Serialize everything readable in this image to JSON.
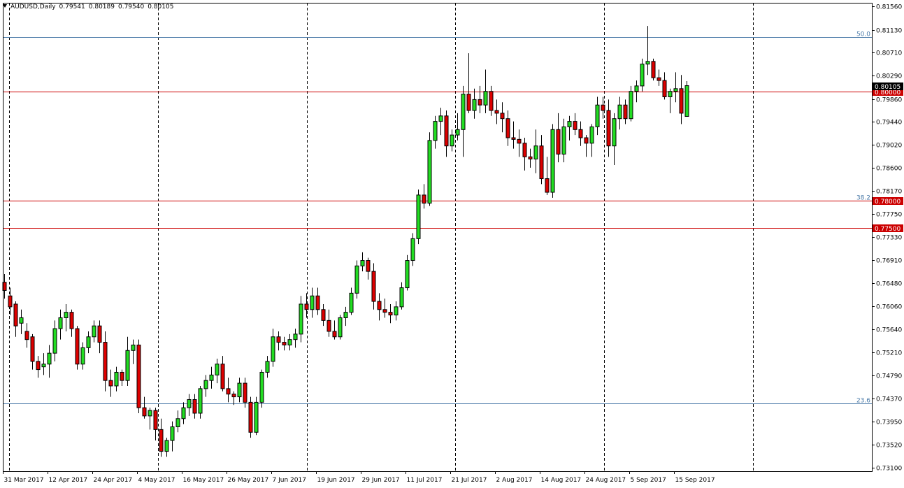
{
  "header": {
    "symbol": "AUDUSD,Daily",
    "open": "0.79541",
    "high": "0.80189",
    "low": "0.79540",
    "close": "0.80105"
  },
  "colors": {
    "bull": "#22dd22",
    "bear": "#dd0000",
    "hline": "#cc0000",
    "fib": "#4a7aa8",
    "grid": "#000000",
    "axis": "#000000"
  },
  "chart_data": {
    "type": "candlestick",
    "symbol": "AUDUSD",
    "timeframe": "Daily",
    "ylim": [
      0.731,
      0.8156
    ],
    "y_ticks": [
      "0.81560",
      "0.81130",
      "0.80710",
      "0.80290",
      "0.79860",
      "0.79440",
      "0.79020",
      "0.78600",
      "0.78170",
      "0.77750",
      "0.77330",
      "0.76910",
      "0.76480",
      "0.76060",
      "0.75640",
      "0.75210",
      "0.74790",
      "0.74370",
      "0.73950",
      "0.73520",
      "0.73100"
    ],
    "x_labels": [
      "31 Mar 2017",
      "12 Apr 2017",
      "24 Apr 2017",
      "4 May 2017",
      "16 May 2017",
      "26 May 2017",
      "7 Jun 2017",
      "19 Jun 2017",
      "29 Jun 2017",
      "11 Jul 2017",
      "21 Jul 2017",
      "2 Aug 2017",
      "14 Aug 2017",
      "24 Aug 2017",
      "5 Sep 2017",
      "15 Sep 2017"
    ],
    "vertical_separators": 6,
    "price_lines": [
      {
        "price": 0.8,
        "label": "0.80000"
      },
      {
        "price": 0.78,
        "label": "0.78000"
      },
      {
        "price": 0.775,
        "label": "0.77500"
      }
    ],
    "fib_levels": [
      {
        "label": "50.0",
        "price": 0.81
      },
      {
        "label": "38.2",
        "price": 0.78
      },
      {
        "label": "23.6",
        "price": 0.7428
      }
    ],
    "current_price": "0.80105",
    "candles_ohlc": [
      [
        0.765,
        0.7665,
        0.762,
        0.7635
      ],
      [
        0.7625,
        0.764,
        0.759,
        0.7605
      ],
      [
        0.761,
        0.7615,
        0.755,
        0.757
      ],
      [
        0.7575,
        0.76,
        0.7555,
        0.7585
      ],
      [
        0.756,
        0.7575,
        0.753,
        0.7545
      ],
      [
        0.755,
        0.7555,
        0.749,
        0.7505
      ],
      [
        0.7505,
        0.7515,
        0.7475,
        0.749
      ],
      [
        0.7495,
        0.752,
        0.748,
        0.75
      ],
      [
        0.75,
        0.7535,
        0.7475,
        0.752
      ],
      [
        0.752,
        0.758,
        0.7505,
        0.7565
      ],
      [
        0.7565,
        0.76,
        0.7545,
        0.7585
      ],
      [
        0.7585,
        0.761,
        0.756,
        0.7595
      ],
      [
        0.7595,
        0.76,
        0.755,
        0.7565
      ],
      [
        0.7565,
        0.757,
        0.749,
        0.75
      ],
      [
        0.75,
        0.754,
        0.749,
        0.753
      ],
      [
        0.753,
        0.756,
        0.752,
        0.755
      ],
      [
        0.755,
        0.758,
        0.754,
        0.757
      ],
      [
        0.757,
        0.758,
        0.752,
        0.754
      ],
      [
        0.754,
        0.756,
        0.745,
        0.747
      ],
      [
        0.747,
        0.749,
        0.744,
        0.746
      ],
      [
        0.746,
        0.7495,
        0.745,
        0.7485
      ],
      [
        0.7485,
        0.749,
        0.746,
        0.747
      ],
      [
        0.747,
        0.755,
        0.746,
        0.7525
      ],
      [
        0.7525,
        0.7545,
        0.75,
        0.7535
      ],
      [
        0.7535,
        0.7545,
        0.741,
        0.742
      ],
      [
        0.742,
        0.744,
        0.74,
        0.7405
      ],
      [
        0.7405,
        0.742,
        0.738,
        0.7415
      ],
      [
        0.7415,
        0.742,
        0.736,
        0.738
      ],
      [
        0.738,
        0.74,
        0.733,
        0.734
      ],
      [
        0.734,
        0.7365,
        0.733,
        0.736
      ],
      [
        0.736,
        0.7395,
        0.734,
        0.7385
      ],
      [
        0.7385,
        0.7415,
        0.7375,
        0.74
      ],
      [
        0.74,
        0.743,
        0.739,
        0.742
      ],
      [
        0.742,
        0.7445,
        0.7405,
        0.7435
      ],
      [
        0.7435,
        0.7445,
        0.74,
        0.741
      ],
      [
        0.741,
        0.746,
        0.74,
        0.7455
      ],
      [
        0.7455,
        0.748,
        0.744,
        0.747
      ],
      [
        0.747,
        0.7495,
        0.7455,
        0.748
      ],
      [
        0.748,
        0.751,
        0.7465,
        0.75
      ],
      [
        0.75,
        0.7515,
        0.745,
        0.7455
      ],
      [
        0.7455,
        0.7475,
        0.743,
        0.7445
      ],
      [
        0.7445,
        0.745,
        0.7425,
        0.744
      ],
      [
        0.744,
        0.7475,
        0.743,
        0.7465
      ],
      [
        0.7465,
        0.7475,
        0.742,
        0.743
      ],
      [
        0.743,
        0.744,
        0.7365,
        0.7375
      ],
      [
        0.7375,
        0.744,
        0.737,
        0.743
      ],
      [
        0.743,
        0.749,
        0.742,
        0.7485
      ],
      [
        0.7485,
        0.7515,
        0.7475,
        0.7505
      ],
      [
        0.7505,
        0.7565,
        0.7495,
        0.755
      ],
      [
        0.755,
        0.756,
        0.7525,
        0.754
      ],
      [
        0.754,
        0.755,
        0.7525,
        0.7535
      ],
      [
        0.7535,
        0.7555,
        0.7525,
        0.7545
      ],
      [
        0.7545,
        0.7565,
        0.753,
        0.7555
      ],
      [
        0.7555,
        0.7625,
        0.754,
        0.761
      ],
      [
        0.761,
        0.763,
        0.7585,
        0.76
      ],
      [
        0.76,
        0.764,
        0.7585,
        0.7625
      ],
      [
        0.7625,
        0.764,
        0.759,
        0.76
      ],
      [
        0.76,
        0.761,
        0.757,
        0.758
      ],
      [
        0.758,
        0.76,
        0.755,
        0.756
      ],
      [
        0.756,
        0.758,
        0.7545,
        0.755
      ],
      [
        0.755,
        0.759,
        0.7545,
        0.7585
      ],
      [
        0.7585,
        0.7605,
        0.757,
        0.7595
      ],
      [
        0.7595,
        0.764,
        0.759,
        0.763
      ],
      [
        0.763,
        0.769,
        0.762,
        0.768
      ],
      [
        0.768,
        0.7705,
        0.767,
        0.769
      ],
      [
        0.769,
        0.7695,
        0.7655,
        0.767
      ],
      [
        0.767,
        0.7685,
        0.76,
        0.7615
      ],
      [
        0.7615,
        0.763,
        0.758,
        0.76
      ],
      [
        0.76,
        0.762,
        0.7585,
        0.7595
      ],
      [
        0.7595,
        0.761,
        0.7575,
        0.759
      ],
      [
        0.759,
        0.7615,
        0.758,
        0.7605
      ],
      [
        0.7605,
        0.765,
        0.76,
        0.764
      ],
      [
        0.764,
        0.77,
        0.7635,
        0.769
      ],
      [
        0.769,
        0.774,
        0.768,
        0.773
      ],
      [
        0.773,
        0.782,
        0.772,
        0.781
      ],
      [
        0.781,
        0.783,
        0.7785,
        0.7795
      ],
      [
        0.7795,
        0.7925,
        0.779,
        0.791
      ],
      [
        0.791,
        0.7955,
        0.7895,
        0.7945
      ],
      [
        0.7945,
        0.797,
        0.792,
        0.7955
      ],
      [
        0.7955,
        0.7965,
        0.788,
        0.79
      ],
      [
        0.79,
        0.793,
        0.789,
        0.792
      ],
      [
        0.792,
        0.796,
        0.791,
        0.793
      ],
      [
        0.793,
        0.801,
        0.788,
        0.7995
      ],
      [
        0.7995,
        0.807,
        0.796,
        0.7965
      ],
      [
        0.7965,
        0.8005,
        0.795,
        0.7985
      ],
      [
        0.7985,
        0.801,
        0.796,
        0.7975
      ],
      [
        0.7975,
        0.804,
        0.796,
        0.8
      ],
      [
        0.8,
        0.801,
        0.7955,
        0.7965
      ],
      [
        0.7965,
        0.7985,
        0.794,
        0.796
      ],
      [
        0.796,
        0.798,
        0.7925,
        0.795
      ],
      [
        0.795,
        0.7965,
        0.79,
        0.7915
      ],
      [
        0.7915,
        0.7945,
        0.7895,
        0.7912
      ],
      [
        0.7912,
        0.793,
        0.788,
        0.7905
      ],
      [
        0.7905,
        0.7915,
        0.7855,
        0.788
      ],
      [
        0.788,
        0.7895,
        0.786,
        0.7876
      ],
      [
        0.7876,
        0.793,
        0.785,
        0.79
      ],
      [
        0.79,
        0.792,
        0.783,
        0.784
      ],
      [
        0.784,
        0.788,
        0.781,
        0.7815
      ],
      [
        0.7815,
        0.794,
        0.7805,
        0.793
      ],
      [
        0.793,
        0.796,
        0.787,
        0.7885
      ],
      [
        0.7885,
        0.795,
        0.787,
        0.7935
      ],
      [
        0.7935,
        0.7955,
        0.791,
        0.7945
      ],
      [
        0.7945,
        0.796,
        0.792,
        0.793
      ],
      [
        0.793,
        0.7945,
        0.79,
        0.7915
      ],
      [
        0.7915,
        0.792,
        0.788,
        0.7905
      ],
      [
        0.7905,
        0.794,
        0.788,
        0.7935
      ],
      [
        0.7935,
        0.799,
        0.792,
        0.7975
      ],
      [
        0.7975,
        0.799,
        0.795,
        0.7965
      ],
      [
        0.7965,
        0.7985,
        0.788,
        0.79
      ],
      [
        0.79,
        0.796,
        0.7865,
        0.795
      ],
      [
        0.795,
        0.799,
        0.793,
        0.7975
      ],
      [
        0.7975,
        0.7985,
        0.794,
        0.795
      ],
      [
        0.795,
        0.801,
        0.7945,
        0.8
      ],
      [
        0.8,
        0.802,
        0.798,
        0.801
      ],
      [
        0.801,
        0.806,
        0.8,
        0.805
      ],
      [
        0.805,
        0.812,
        0.803,
        0.8055
      ],
      [
        0.8055,
        0.806,
        0.802,
        0.8025
      ],
      [
        0.8025,
        0.804,
        0.801,
        0.802
      ],
      [
        0.802,
        0.8035,
        0.7985,
        0.799
      ],
      [
        0.799,
        0.8005,
        0.796,
        0.8
      ],
      [
        0.8,
        0.8035,
        0.798,
        0.8005
      ],
      [
        0.8005,
        0.803,
        0.794,
        0.796
      ],
      [
        0.79541,
        0.80189,
        0.7954,
        0.80105
      ]
    ]
  }
}
